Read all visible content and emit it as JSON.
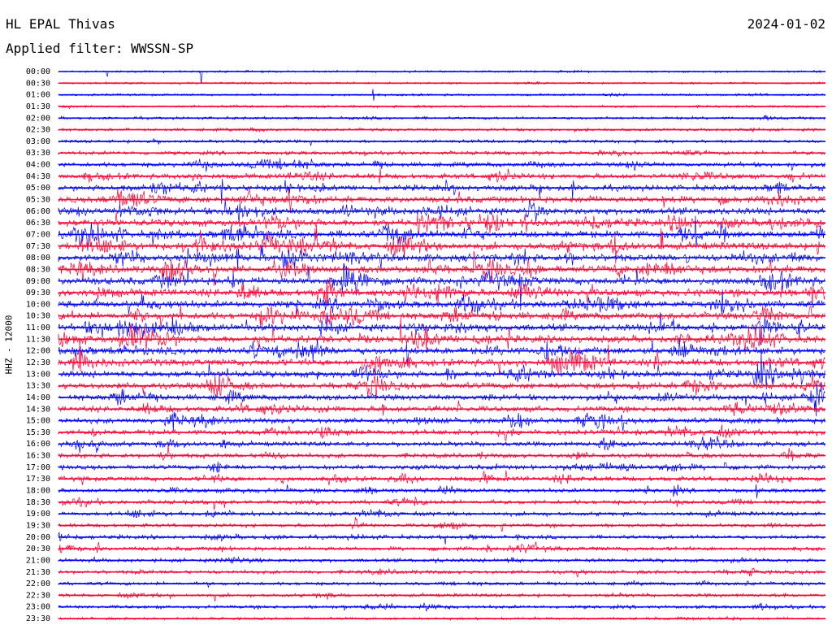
{
  "header": {
    "station": "HL EPAL Thivas",
    "date": "2024-01-02",
    "filter_label": "Applied filter: WWSSN-SP"
  },
  "chart_data": {
    "type": "line",
    "title": "HL EPAL Thivas",
    "date": "2024-01-02",
    "filter": "WWSSN-SP",
    "ylabel": "HHZ - 12000",
    "row_labels": [
      "00:00",
      "00:30",
      "01:00",
      "01:30",
      "02:00",
      "02:30",
      "03:00",
      "03:30",
      "04:00",
      "04:30",
      "05:00",
      "05:30",
      "06:00",
      "06:30",
      "07:00",
      "07:30",
      "08:00",
      "08:30",
      "09:00",
      "09:30",
      "10:00",
      "10:30",
      "11:00",
      "11:30",
      "12:00",
      "12:30",
      "13:00",
      "13:30",
      "14:00",
      "14:30",
      "15:00",
      "15:30",
      "16:00",
      "16:30",
      "17:00",
      "17:30",
      "18:00",
      "18:30",
      "19:00",
      "19:30",
      "20:00",
      "20:30",
      "21:00",
      "21:30",
      "22:00",
      "22:30",
      "23:00",
      "23:30"
    ],
    "row_amplitude": [
      0.06,
      0.06,
      0.08,
      0.1,
      0.18,
      0.2,
      0.25,
      0.35,
      0.5,
      0.6,
      0.75,
      0.8,
      0.9,
      0.95,
      1.0,
      1.0,
      1.0,
      1.0,
      1.0,
      1.0,
      0.95,
      0.95,
      0.95,
      0.95,
      0.95,
      0.9,
      0.85,
      0.8,
      0.75,
      0.7,
      0.65,
      0.6,
      0.55,
      0.5,
      0.5,
      0.55,
      0.45,
      0.45,
      0.4,
      0.35,
      0.4,
      0.4,
      0.35,
      0.35,
      0.3,
      0.3,
      0.3,
      0.15
    ],
    "series_colors": [
      "#0000ff",
      "#ff0033"
    ],
    "grid": false,
    "legend": "none"
  }
}
